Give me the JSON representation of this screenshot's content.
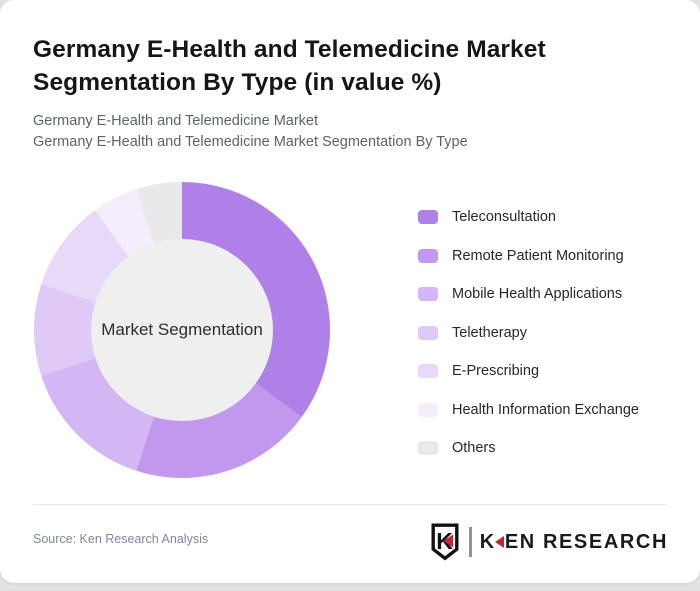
{
  "header": {
    "title": "Germany E-Health and Telemedicine Market Segmentation By Type (in value %)",
    "subtitle_line1": "Germany E-Health and Telemedicine Market",
    "subtitle_line2": "Germany E-Health and Telemedicine Market Segmentation By Type"
  },
  "chart_data": {
    "type": "pie",
    "style": "donut",
    "title": "Germany E-Health and Telemedicine Market Segmentation By Type (in value %)",
    "center_label": "Market Segmentation",
    "unit": "%",
    "categories": [
      "Teleconsultation",
      "Remote Patient Monitoring",
      "Mobile Health Applications",
      "Teletherapy",
      "E-Prescribing",
      "Health Information Exchange",
      "Others"
    ],
    "values": [
      35,
      20,
      15,
      10,
      10,
      5,
      5
    ],
    "colors": [
      "#af80e8",
      "#c298ee",
      "#d5b6f5",
      "#dfc9f7",
      "#e8d9f9",
      "#f4edfc",
      "#e9e9ea"
    ],
    "hole_color": "#efefef",
    "start_angle_deg": 0,
    "direction": "clockwise",
    "legend_position": "right",
    "data_labels_shown": false
  },
  "footer": {
    "source": "Source: Ken Research Analysis",
    "brand": {
      "shield_letter": "K",
      "wordmark_prefix": "K",
      "wordmark_suffix": "EN RESEARCH",
      "accent_red": "#c1272d"
    }
  }
}
